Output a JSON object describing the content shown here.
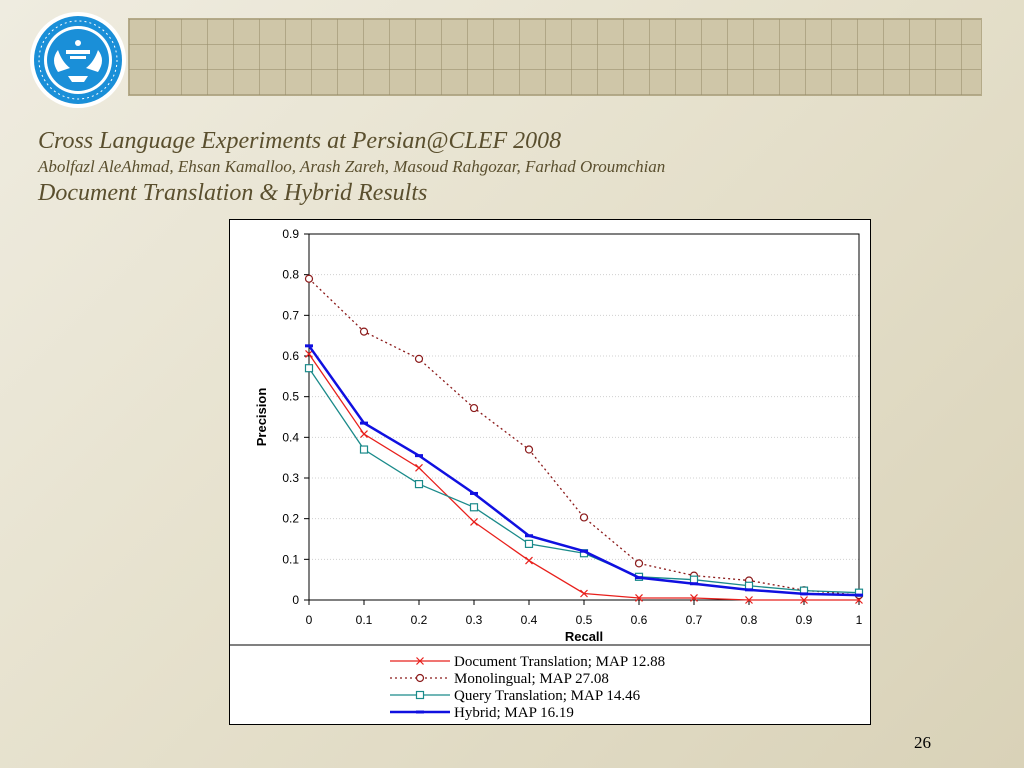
{
  "slide": {
    "title": "Cross Language Experiments at Persian@CLEF 2008",
    "authors": "Abolfazl AleAhmad, Ehsan Kamalloo, Arash Zareh, Masoud Rahgozar, Farhad Oroumchian",
    "subtitle": "Document Translation & Hybrid Results",
    "page_number": "26",
    "logo_icon": "university-of-tehran-logo"
  },
  "chart_data": {
    "type": "line",
    "title": "",
    "xlabel": "Recall",
    "ylabel": "Precision",
    "x": [
      0,
      0.1,
      0.2,
      0.3,
      0.4,
      0.5,
      0.6,
      0.7,
      0.8,
      0.9,
      1
    ],
    "x_tick_labels": [
      "0",
      "0.1",
      "0.2",
      "0.3",
      "0.4",
      "0.5",
      "0.6",
      "0.7",
      "0.8",
      "0.9",
      "1"
    ],
    "y_tick_labels": [
      "0",
      "0.1",
      "0.2",
      "0.3",
      "0.4",
      "0.5",
      "0.6",
      "0.7",
      "0.8",
      "0.9"
    ],
    "xlim": [
      0,
      1
    ],
    "ylim": [
      0,
      0.9
    ],
    "grid": "horizontal",
    "legend_position": "bottom",
    "series": [
      {
        "name": "Document Translation; MAP 12.88",
        "color": "#e8201c",
        "marker": "x",
        "dash": "solid",
        "values": [
          0.605,
          0.408,
          0.325,
          0.192,
          0.097,
          0.016,
          0.005,
          0.005,
          0.0,
          0.0,
          0.0
        ]
      },
      {
        "name": "Monolingual; MAP 27.08",
        "color": "#8b1a1a",
        "marker": "circle",
        "dash": "dotted",
        "values": [
          0.79,
          0.66,
          0.593,
          0.472,
          0.37,
          0.203,
          0.09,
          0.06,
          0.048,
          0.024,
          0.012
        ]
      },
      {
        "name": "Query Translation; MAP 14.46",
        "color": "#1a8a8a",
        "marker": "square",
        "dash": "solid",
        "values": [
          0.57,
          0.37,
          0.285,
          0.228,
          0.138,
          0.115,
          0.057,
          0.05,
          0.035,
          0.023,
          0.018
        ]
      },
      {
        "name": "Hybrid; MAP 16.19",
        "color": "#1010e0",
        "marker": "dash",
        "dash": "solid-thick",
        "values": [
          0.625,
          0.435,
          0.355,
          0.262,
          0.158,
          0.12,
          0.055,
          0.04,
          0.025,
          0.015,
          0.012
        ]
      }
    ]
  }
}
